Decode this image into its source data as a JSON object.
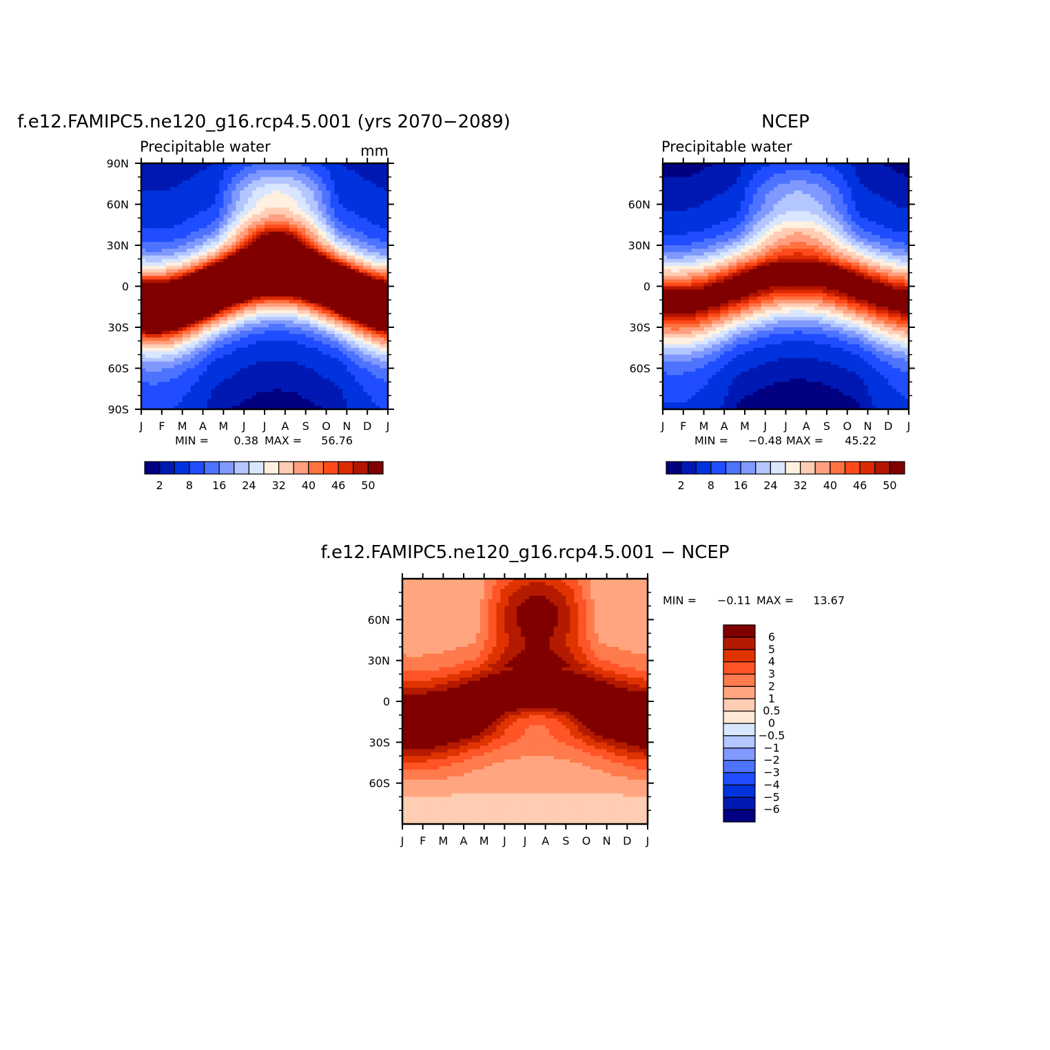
{
  "palette": {
    "main": [
      "#000080",
      "#0019b3",
      "#0033dd",
      "#1f4dff",
      "#4d73ff",
      "#8099ff",
      "#b3c6ff",
      "#d9e6ff",
      "#fff0e0",
      "#ffcdb3",
      "#ff9f80",
      "#ff7340",
      "#ff4a1a",
      "#dd2a00",
      "#b31500",
      "#800000"
    ],
    "diff": [
      "#000080",
      "#0019b3",
      "#0033dd",
      "#1f4dff",
      "#4d73ff",
      "#8099ff",
      "#b3c6ff",
      "#d9e6ff",
      "#ffe8d6",
      "#ffcdb3",
      "#ffa680",
      "#ff7a4d",
      "#ff5426",
      "#e03300",
      "#b31a00",
      "#800000"
    ]
  },
  "chart_data": [
    {
      "type": "heatmap",
      "name": "model",
      "title": "f.e12.FAMIPC5.ne120_g16.rcp4.5.001 (yrs 2070−2089)",
      "subtitle": "Precipitable water",
      "units": "mm",
      "xticks": [
        "J",
        "F",
        "M",
        "A",
        "M",
        "J",
        "J",
        "A",
        "S",
        "O",
        "N",
        "D",
        "J"
      ],
      "yticks": [
        "90N",
        "60N",
        "30N",
        "0",
        "30S",
        "60S",
        "90S"
      ],
      "ylim": [
        -90,
        90
      ],
      "min_label": "MIN =",
      "min_value": "0.38",
      "max_label": "MAX =",
      "max_value": "56.76",
      "colorbar": {
        "orientation": "horizontal",
        "levels": [
          0,
          2,
          4,
          8,
          12,
          16,
          20,
          24,
          28,
          32,
          36,
          40,
          43,
          46,
          48,
          50
        ],
        "labels": [
          "2",
          "8",
          "16",
          "24",
          "32",
          "40",
          "46",
          "50"
        ]
      },
      "field": {
        "kind": "pw",
        "peak": 57,
        "eq_shift": 12,
        "width": 20,
        "npole_base": 4,
        "npole_summer": 18,
        "spole": 1.5,
        "spole_summer": 3
      }
    },
    {
      "type": "heatmap",
      "name": "obs",
      "title": "NCEP",
      "subtitle": "Precipitable water",
      "xticks": [
        "J",
        "F",
        "M",
        "A",
        "M",
        "J",
        "J",
        "A",
        "S",
        "O",
        "N",
        "D",
        "J"
      ],
      "yticks": [
        "60N",
        "30N",
        "0",
        "30S",
        "60S"
      ],
      "ylim": [
        -90,
        90
      ],
      "min_label": "MIN =",
      "min_value": "−0.48",
      "max_label": "MAX =",
      "max_value": "45.22",
      "colorbar": {
        "orientation": "horizontal",
        "levels": [
          0,
          2,
          4,
          8,
          12,
          16,
          20,
          24,
          28,
          32,
          36,
          40,
          43,
          46,
          48,
          50
        ],
        "labels": [
          "2",
          "8",
          "16",
          "24",
          "32",
          "40",
          "46",
          "50"
        ]
      },
      "field": {
        "kind": "pw",
        "peak": 44,
        "eq_shift": 9,
        "width": 21,
        "npole_base": 2,
        "npole_summer": 13,
        "spole": 0.5,
        "spole_summer": 2
      }
    },
    {
      "type": "heatmap",
      "name": "difference",
      "title": "f.e12.FAMIPC5.ne120_g16.rcp4.5.001 − NCEP",
      "xticks": [
        "J",
        "F",
        "M",
        "A",
        "M",
        "J",
        "J",
        "A",
        "S",
        "O",
        "N",
        "D",
        "J"
      ],
      "yticks": [
        "60N",
        "30N",
        "0",
        "30S",
        "60S"
      ],
      "ylim": [
        -90,
        90
      ],
      "min_label": "MIN =",
      "min_value": "−0.11",
      "max_label": "MAX =",
      "max_value": "13.67",
      "colorbar": {
        "orientation": "vertical",
        "levels": [
          -100,
          -6,
          -5,
          -4,
          -3,
          -2,
          -1,
          -0.5,
          0,
          0.5,
          1,
          2,
          3,
          4,
          5,
          6
        ],
        "labels": [
          "6",
          "5",
          "4",
          "3",
          "2",
          "1",
          "0.5",
          "0",
          "−0.5",
          "−1",
          "−2",
          "−3",
          "−4",
          "−5",
          "−6"
        ]
      },
      "field": {
        "kind": "diff"
      }
    }
  ]
}
